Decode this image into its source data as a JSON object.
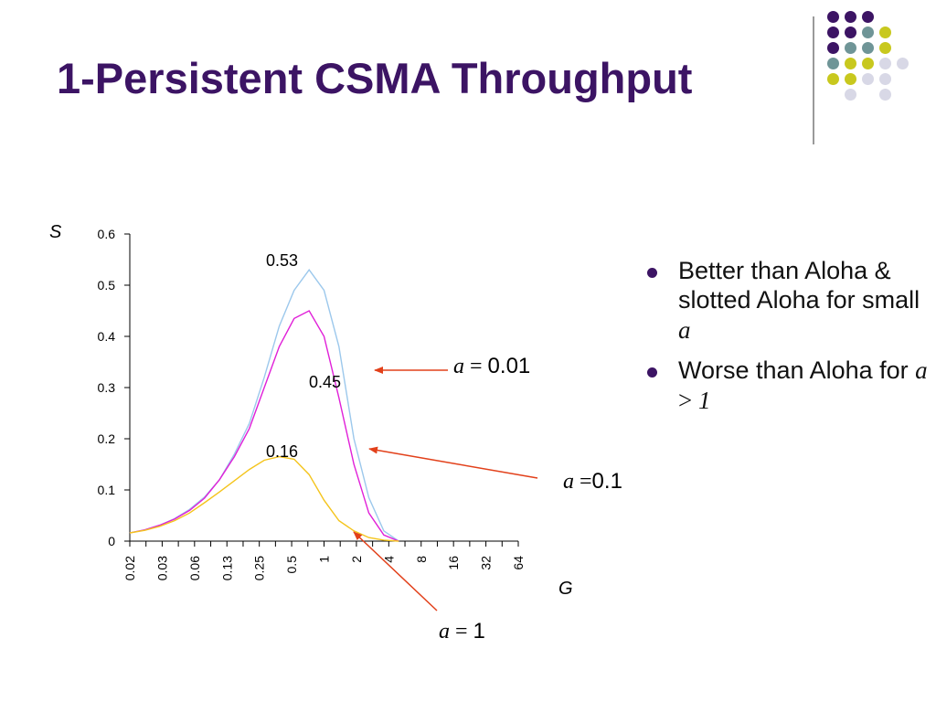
{
  "slide": {
    "title": "1-Persistent CSMA Throughput",
    "bullets": [
      {
        "text": "Better than Aloha & slotted Aloha for small ",
        "math": "a",
        "rest": ""
      },
      {
        "text": "Worse than Aloha for ",
        "math": "a",
        "op": " > ",
        "math2": "1"
      }
    ]
  },
  "colors": {
    "title": "#3c1464",
    "dots": [
      "#3c1464",
      "#6f9597",
      "#c8c81e",
      "#d8d8e6"
    ],
    "arrow": "#e2401a"
  },
  "chart_data": {
    "type": "line",
    "xlabel": "G",
    "ylabel": "S",
    "ylim": [
      0,
      0.6
    ],
    "yticks": [
      "0",
      "0.1",
      "0.2",
      "0.3",
      "0.4",
      "0.5",
      "0.6"
    ],
    "x_scale": "log2",
    "xticks": [
      "0.02",
      "0.03",
      "0.06",
      "0.13",
      "0.25",
      "0.5",
      "1",
      "2",
      "4",
      "8",
      "16",
      "32",
      "64"
    ],
    "x": [
      0.015625,
      0.0221,
      0.03125,
      0.0442,
      0.0625,
      0.0884,
      0.125,
      0.1768,
      0.25,
      0.3536,
      0.5,
      0.7071,
      1,
      1.414,
      2,
      2.828,
      4,
      5.657,
      8
    ],
    "series": [
      {
        "color": "#9cc8ec",
        "values": [
          0.016,
          0.022,
          0.031,
          0.044,
          0.062,
          0.086,
          0.12,
          0.17,
          0.23,
          0.32,
          0.42,
          0.49,
          0.53,
          0.49,
          0.38,
          0.2,
          0.085,
          0.02,
          0.0
        ]
      },
      {
        "color": "#e020d8",
        "values": [
          0.016,
          0.022,
          0.031,
          0.043,
          0.06,
          0.084,
          0.12,
          0.165,
          0.22,
          0.3,
          0.38,
          0.435,
          0.45,
          0.4,
          0.28,
          0.15,
          0.055,
          0.012,
          0.0
        ]
      },
      {
        "color": "#f4c41c",
        "values": [
          0.016,
          0.021,
          0.029,
          0.04,
          0.055,
          0.075,
          0.096,
          0.118,
          0.14,
          0.158,
          0.165,
          0.16,
          0.13,
          0.08,
          0.04,
          0.02,
          0.007,
          0.002,
          0.0
        ]
      }
    ],
    "peak_labels": [
      "0.53",
      "0.45",
      "0.16"
    ],
    "annotations": [
      {
        "math": "a",
        "eq": " = ",
        "value": "0.01"
      },
      {
        "math": "a",
        "eq": " =",
        "value": "0.1"
      },
      {
        "math": "a",
        "eq": " = ",
        "value": "1"
      }
    ]
  }
}
